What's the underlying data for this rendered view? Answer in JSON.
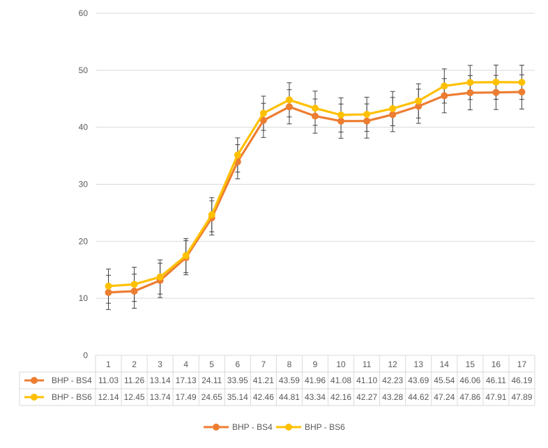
{
  "chart_data": {
    "type": "line",
    "title": "",
    "xlabel": "",
    "ylabel": "",
    "ylim": [
      0,
      60
    ],
    "yticks": [
      0,
      10,
      20,
      30,
      40,
      50,
      60
    ],
    "grid": true,
    "legend_position": "bottom",
    "categories": [
      "1",
      "2",
      "3",
      "4",
      "5",
      "6",
      "7",
      "8",
      "9",
      "10",
      "11",
      "12",
      "13",
      "14",
      "15",
      "16",
      "17"
    ],
    "error_bar_size": 3,
    "series": [
      {
        "name": "BHP - BS4",
        "color": "#ED7D31",
        "values": [
          11.03,
          11.26,
          13.14,
          17.13,
          24.11,
          33.95,
          41.21,
          43.59,
          41.96,
          41.08,
          41.1,
          42.23,
          43.69,
          45.54,
          46.06,
          46.11,
          46.19
        ],
        "labels": [
          "11.03",
          "11.26",
          "13.14",
          "17.13",
          "24.11",
          "33.95",
          "41.21",
          "43.59",
          "41.96",
          "41.08",
          "41.10",
          "42.23",
          "43.69",
          "45.54",
          "46.06",
          "46.11",
          "46.19"
        ]
      },
      {
        "name": "BHP - BS6",
        "color": "#FFC000",
        "values": [
          12.14,
          12.45,
          13.74,
          17.49,
          24.65,
          35.14,
          42.46,
          44.81,
          43.34,
          42.16,
          42.27,
          43.28,
          44.62,
          47.24,
          47.86,
          47.91,
          47.89
        ],
        "labels": [
          "12.14",
          "12.45",
          "13.74",
          "17.49",
          "24.65",
          "35.14",
          "42.46",
          "44.81",
          "43.34",
          "42.16",
          "42.27",
          "43.28",
          "44.62",
          "47.24",
          "47.86",
          "47.91",
          "47.89"
        ]
      }
    ]
  }
}
